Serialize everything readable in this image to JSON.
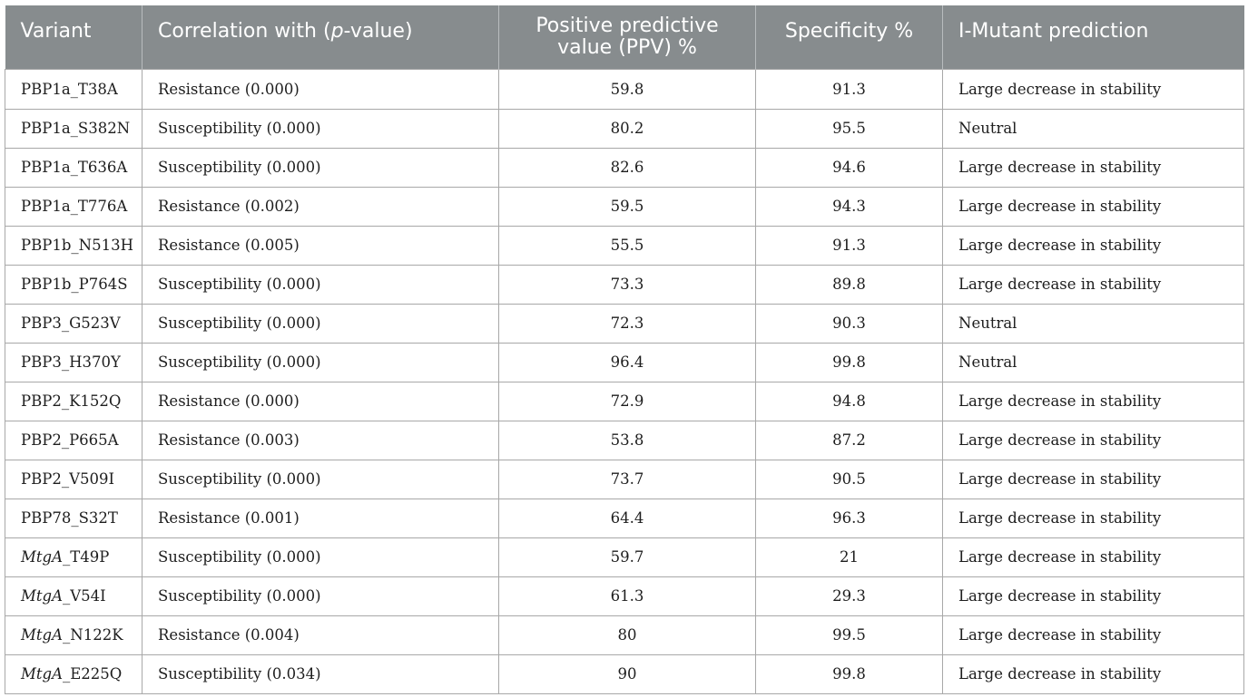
{
  "table": {
    "headers": {
      "variant": "Variant",
      "correlation_prefix": "Correlation with (",
      "correlation_italic": "p",
      "correlation_suffix": "-value)",
      "ppv_line1": "Positive predictive",
      "ppv_line2": "value (PPV) %",
      "specificity": "Specificity %",
      "imutant": "I-Mutant prediction"
    },
    "rows": [
      {
        "variant_italic": "",
        "variant": "PBP1a_T38A",
        "correlation": "Resistance (0.000)",
        "ppv": "59.8",
        "specificity": "91.3",
        "prediction": "Large decrease in stability"
      },
      {
        "variant_italic": "",
        "variant": "PBP1a_S382N",
        "correlation": "Susceptibility (0.000)",
        "ppv": "80.2",
        "specificity": "95.5",
        "prediction": "Neutral"
      },
      {
        "variant_italic": "",
        "variant": "PBP1a_T636A",
        "correlation": "Susceptibility (0.000)",
        "ppv": "82.6",
        "specificity": "94.6",
        "prediction": "Large decrease in stability"
      },
      {
        "variant_italic": "",
        "variant": "PBP1a_T776A",
        "correlation": "Resistance (0.002)",
        "ppv": "59.5",
        "specificity": "94.3",
        "prediction": "Large decrease in stability"
      },
      {
        "variant_italic": "",
        "variant": "PBP1b_N513H",
        "correlation": "Resistance (0.005)",
        "ppv": "55.5",
        "specificity": "91.3",
        "prediction": "Large decrease in stability"
      },
      {
        "variant_italic": "",
        "variant": "PBP1b_P764S",
        "correlation": "Susceptibility (0.000)",
        "ppv": "73.3",
        "specificity": "89.8",
        "prediction": "Large decrease in stability"
      },
      {
        "variant_italic": "",
        "variant": "PBP3_G523V",
        "correlation": "Susceptibility (0.000)",
        "ppv": "72.3",
        "specificity": "90.3",
        "prediction": "Neutral"
      },
      {
        "variant_italic": "",
        "variant": "PBP3_H370Y",
        "correlation": "Susceptibility (0.000)",
        "ppv": "96.4",
        "specificity": "99.8",
        "prediction": "Neutral"
      },
      {
        "variant_italic": "",
        "variant": "PBP2_K152Q",
        "correlation": "Resistance (0.000)",
        "ppv": "72.9",
        "specificity": "94.8",
        "prediction": "Large decrease in stability"
      },
      {
        "variant_italic": "",
        "variant": "PBP2_P665A",
        "correlation": "Resistance (0.003)",
        "ppv": "53.8",
        "specificity": "87.2",
        "prediction": "Large decrease in stability"
      },
      {
        "variant_italic": "",
        "variant": "PBP2_V509I",
        "correlation": "Susceptibility (0.000)",
        "ppv": "73.7",
        "specificity": "90.5",
        "prediction": "Large decrease in stability"
      },
      {
        "variant_italic": "",
        "variant": "PBP78_S32T",
        "correlation": "Resistance (0.001)",
        "ppv": "64.4",
        "specificity": "96.3",
        "prediction": "Large decrease in stability"
      },
      {
        "variant_italic": "MtgA",
        "variant": "_T49P",
        "correlation": "Susceptibility (0.000)",
        "ppv": "59.7",
        "specificity": "21",
        "prediction": "Large decrease in stability"
      },
      {
        "variant_italic": "MtgA",
        "variant": "_V54I",
        "correlation": "Susceptibility (0.000)",
        "ppv": "61.3",
        "specificity": "29.3",
        "prediction": "Large decrease in stability"
      },
      {
        "variant_italic": "MtgA",
        "variant": "_N122K",
        "correlation": "Resistance (0.004)",
        "ppv": "80",
        "specificity": "99.5",
        "prediction": "Large decrease in stability"
      },
      {
        "variant_italic": "MtgA",
        "variant": "_E225Q",
        "correlation": "Susceptibility (0.034)",
        "ppv": "90",
        "specificity": "99.8",
        "prediction": "Large decrease in stability"
      }
    ]
  }
}
